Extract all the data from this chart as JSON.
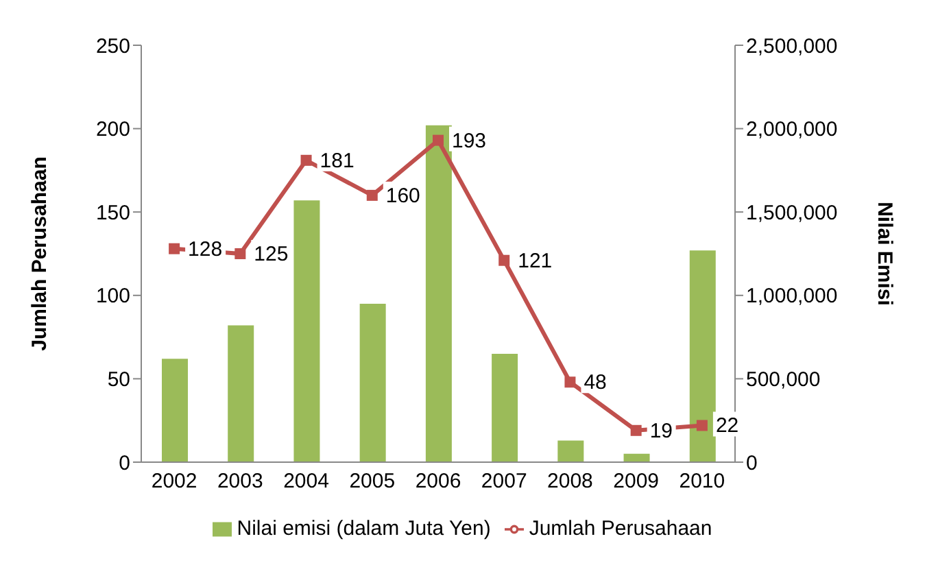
{
  "chart_data": {
    "type": "bar",
    "categories": [
      "2002",
      "2003",
      "2004",
      "2005",
      "2006",
      "2007",
      "2008",
      "2009",
      "2010"
    ],
    "ylabel": "Jumlah Perusahaan",
    "y2label": "Nilai Emisi",
    "series": [
      {
        "name": "Nilai emisi (dalam Juta Yen)",
        "axis": "y2",
        "color": "#9bbb59",
        "values": [
          620000,
          820000,
          1570000,
          950000,
          2020000,
          650000,
          130000,
          50000,
          1270000
        ]
      },
      {
        "name": "Jumlah Perusahaan",
        "type": "line",
        "axis": "y",
        "color": "#c0504d",
        "marker": "square",
        "values": [
          128,
          125,
          181,
          160,
          193,
          121,
          48,
          19,
          22
        ],
        "value_labels": [
          "128",
          "125",
          "181",
          "160",
          "193",
          "121",
          "48",
          "19",
          "22"
        ]
      }
    ],
    "ylim": [
      0,
      250
    ],
    "yticks": [
      0,
      50,
      100,
      150,
      200,
      250
    ],
    "y2lim": [
      0,
      2500000
    ],
    "y2ticks": [
      {
        "value": 0,
        "label": "0"
      },
      {
        "value": 500000,
        "label": "500,000"
      },
      {
        "value": 1000000,
        "label": "1,000,000"
      },
      {
        "value": 1500000,
        "label": "1,500,000"
      },
      {
        "value": 2000000,
        "label": "2,000,000"
      },
      {
        "value": 2500000,
        "label": "2,500,000"
      }
    ],
    "grid": false,
    "legend": "bottom"
  }
}
